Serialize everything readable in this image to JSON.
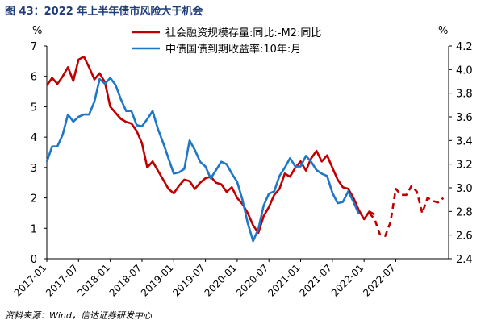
{
  "title": "图 43：2022 年上半年债市风险大于机会",
  "source": "资料来源：Wind，信达证券研发中心",
  "chart_data": {
    "type": "line",
    "left_unit": "%",
    "right_unit": "%",
    "left_axis": {
      "min": 0,
      "max": 7,
      "ticks": [
        "0",
        "1",
        "2",
        "3",
        "4",
        "5",
        "6",
        "7"
      ]
    },
    "right_axis": {
      "min": 2.4,
      "max": 4.2,
      "ticks": [
        "2.4",
        "2.6",
        "2.8",
        "3.0",
        "3.2",
        "3.4",
        "3.6",
        "3.8",
        "4.0",
        "4.2"
      ]
    },
    "x_ticks": [
      "2017-01",
      "2017-07",
      "2018-01",
      "2018-07",
      "2019-01",
      "2019-07",
      "2020-01",
      "2020-07",
      "2021-01",
      "2021-07",
      "2022-01",
      "2022-07"
    ],
    "legend_position": "top",
    "series": [
      {
        "name": "社会融资规模存量:同比:-M2:同比",
        "axis": "left",
        "color": "#c00000",
        "points": [
          [
            "2017-01",
            5.7
          ],
          [
            "2017-02",
            5.95
          ],
          [
            "2017-03",
            5.75
          ],
          [
            "2017-04",
            6.0
          ],
          [
            "2017-05",
            6.3
          ],
          [
            "2017-06",
            5.85
          ],
          [
            "2017-07",
            6.55
          ],
          [
            "2017-08",
            6.65
          ],
          [
            "2017-09",
            6.3
          ],
          [
            "2017-10",
            5.9
          ],
          [
            "2017-11",
            6.1
          ],
          [
            "2017-12",
            5.8
          ],
          [
            "2018-01",
            5.0
          ],
          [
            "2018-02",
            4.8
          ],
          [
            "2018-03",
            4.6
          ],
          [
            "2018-04",
            4.5
          ],
          [
            "2018-05",
            4.45
          ],
          [
            "2018-06",
            4.2
          ],
          [
            "2018-07",
            3.8
          ],
          [
            "2018-08",
            3.0
          ],
          [
            "2018-09",
            3.2
          ],
          [
            "2018-10",
            2.9
          ],
          [
            "2018-11",
            2.6
          ],
          [
            "2018-12",
            2.3
          ],
          [
            "2019-01",
            2.15
          ],
          [
            "2019-02",
            2.4
          ],
          [
            "2019-03",
            2.6
          ],
          [
            "2019-04",
            2.55
          ],
          [
            "2019-05",
            2.3
          ],
          [
            "2019-06",
            2.5
          ],
          [
            "2019-07",
            2.65
          ],
          [
            "2019-08",
            2.7
          ],
          [
            "2019-09",
            2.5
          ],
          [
            "2019-10",
            2.45
          ],
          [
            "2019-11",
            2.2
          ],
          [
            "2019-12",
            2.35
          ],
          [
            "2020-01",
            2.0
          ],
          [
            "2020-02",
            1.8
          ],
          [
            "2020-03",
            1.5
          ],
          [
            "2020-04",
            1.1
          ],
          [
            "2020-05",
            0.85
          ],
          [
            "2020-06",
            1.4
          ],
          [
            "2020-07",
            1.7
          ],
          [
            "2020-08",
            2.1
          ],
          [
            "2020-09",
            2.3
          ],
          [
            "2020-10",
            2.8
          ],
          [
            "2020-11",
            2.7
          ],
          [
            "2020-12",
            3.0
          ],
          [
            "2021-01",
            3.2
          ],
          [
            "2021-02",
            2.9
          ],
          [
            "2021-03",
            3.3
          ],
          [
            "2021-04",
            3.55
          ],
          [
            "2021-05",
            3.2
          ],
          [
            "2021-06",
            3.4
          ],
          [
            "2021-07",
            3.0
          ],
          [
            "2021-08",
            2.6
          ],
          [
            "2021-09",
            2.35
          ],
          [
            "2021-10",
            2.3
          ],
          [
            "2021-11",
            2.0
          ],
          [
            "2021-12",
            1.6
          ],
          [
            "2022-01",
            1.3
          ],
          [
            "2022-02",
            1.55
          ],
          [
            "2022-03",
            1.45
          ]
        ]
      },
      {
        "name": "社会融资规模存量:同比:-M2:同比 (dashed)",
        "axis": "left",
        "color": "#c00000",
        "dashed": true,
        "points": [
          [
            "2022-02",
            1.5
          ],
          [
            "2022-03",
            1.3
          ],
          [
            "2022-04",
            0.8
          ],
          [
            "2022-05",
            0.75
          ],
          [
            "2022-06",
            1.2
          ],
          [
            "2022-07",
            2.3
          ],
          [
            "2022-08",
            2.1
          ],
          [
            "2022-09",
            2.1
          ],
          [
            "2022-10",
            2.4
          ],
          [
            "2022-11",
            2.2
          ],
          [
            "2022-12",
            1.5
          ],
          [
            "2023-01",
            2.0
          ],
          [
            "2023-02",
            1.9
          ],
          [
            "2023-03",
            1.85
          ],
          [
            "2023-04",
            2.0
          ]
        ]
      },
      {
        "name": "中债国债到期收益率:10年:月",
        "axis": "right",
        "color": "#1f77c8",
        "points": [
          [
            "2017-01",
            3.22
          ],
          [
            "2017-02",
            3.35
          ],
          [
            "2017-03",
            3.35
          ],
          [
            "2017-04",
            3.45
          ],
          [
            "2017-05",
            3.62
          ],
          [
            "2017-06",
            3.56
          ],
          [
            "2017-07",
            3.6
          ],
          [
            "2017-08",
            3.62
          ],
          [
            "2017-09",
            3.62
          ],
          [
            "2017-10",
            3.73
          ],
          [
            "2017-11",
            3.92
          ],
          [
            "2017-12",
            3.88
          ],
          [
            "2018-01",
            3.93
          ],
          [
            "2018-02",
            3.87
          ],
          [
            "2018-03",
            3.75
          ],
          [
            "2018-04",
            3.65
          ],
          [
            "2018-05",
            3.65
          ],
          [
            "2018-06",
            3.53
          ],
          [
            "2018-07",
            3.52
          ],
          [
            "2018-08",
            3.58
          ],
          [
            "2018-09",
            3.65
          ],
          [
            "2018-10",
            3.5
          ],
          [
            "2018-11",
            3.38
          ],
          [
            "2018-12",
            3.25
          ],
          [
            "2019-01",
            3.12
          ],
          [
            "2019-02",
            3.13
          ],
          [
            "2019-03",
            3.16
          ],
          [
            "2019-04",
            3.4
          ],
          [
            "2019-05",
            3.32
          ],
          [
            "2019-06",
            3.22
          ],
          [
            "2019-07",
            3.18
          ],
          [
            "2019-08",
            3.08
          ],
          [
            "2019-09",
            3.15
          ],
          [
            "2019-10",
            3.22
          ],
          [
            "2019-11",
            3.2
          ],
          [
            "2019-12",
            3.12
          ],
          [
            "2020-01",
            3.05
          ],
          [
            "2020-02",
            2.9
          ],
          [
            "2020-03",
            2.7
          ],
          [
            "2020-04",
            2.55
          ],
          [
            "2020-05",
            2.65
          ],
          [
            "2020-06",
            2.85
          ],
          [
            "2020-07",
            2.95
          ],
          [
            "2020-08",
            2.97
          ],
          [
            "2020-09",
            3.1
          ],
          [
            "2020-10",
            3.17
          ],
          [
            "2020-11",
            3.25
          ],
          [
            "2020-12",
            3.18
          ],
          [
            "2021-01",
            3.18
          ],
          [
            "2021-02",
            3.27
          ],
          [
            "2021-03",
            3.22
          ],
          [
            "2021-04",
            3.15
          ],
          [
            "2021-05",
            3.12
          ],
          [
            "2021-06",
            3.1
          ],
          [
            "2021-07",
            2.96
          ],
          [
            "2021-08",
            2.87
          ],
          [
            "2021-09",
            2.88
          ],
          [
            "2021-10",
            2.97
          ],
          [
            "2021-11",
            2.88
          ],
          [
            "2021-12",
            2.78
          ]
        ]
      }
    ]
  }
}
